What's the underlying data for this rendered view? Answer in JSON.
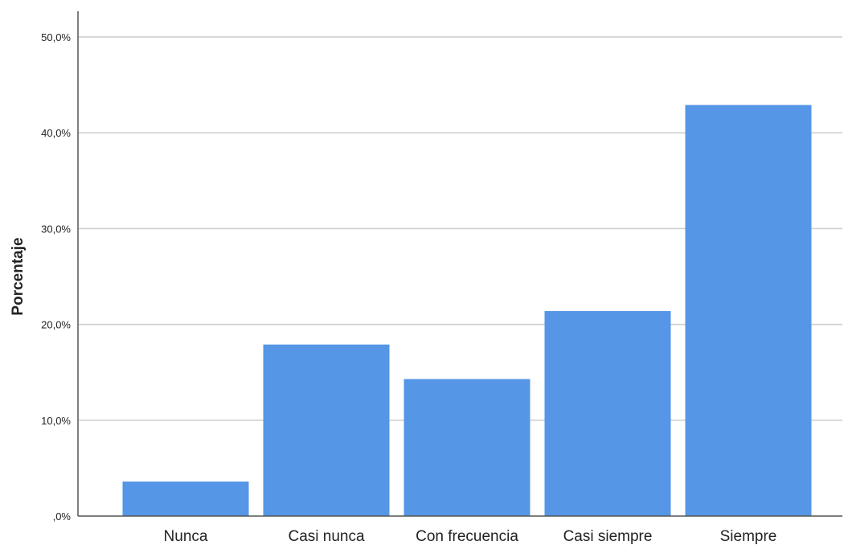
{
  "chart_data": {
    "type": "bar",
    "title": "",
    "xlabel": "",
    "ylabel": "Porcentaje",
    "categories": [
      "Nunca",
      "Casi nunca",
      "Con frecuencia",
      "Casi siempre",
      "Siempre"
    ],
    "values": [
      3.6,
      17.9,
      14.3,
      21.4,
      42.9
    ],
    "ylim": [
      0,
      50
    ],
    "yticks": [
      0,
      10,
      20,
      30,
      40,
      50
    ],
    "ytick_labels": [
      ",0%",
      "10,0%",
      "20,0%",
      "30,0%",
      "40,0%",
      "50,0%"
    ],
    "grid": true,
    "legend": "none",
    "bar_color": "#5596E6",
    "grid_color": "#cccccc",
    "axis_color": "#555555"
  }
}
